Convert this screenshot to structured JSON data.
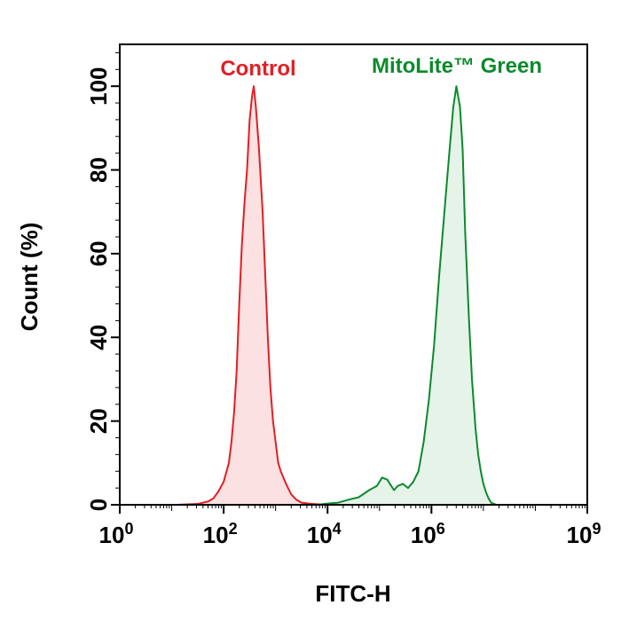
{
  "chart_data": {
    "type": "area",
    "title": "",
    "xlabel": "FITC-H",
    "ylabel": "Count  (%)",
    "x_scale": "log10",
    "xlim": [
      1,
      1000000000
    ],
    "ylim": [
      0,
      110
    ],
    "x_ticks": [
      {
        "value": 1,
        "base": "10",
        "exp": "0"
      },
      {
        "value": 100,
        "base": "10",
        "exp": "2"
      },
      {
        "value": 10000,
        "base": "10",
        "exp": "4"
      },
      {
        "value": 1000000,
        "base": "10",
        "exp": "6"
      },
      {
        "value": 1000000000,
        "base": "10",
        "exp": "9"
      }
    ],
    "y_ticks": [
      0,
      20,
      40,
      60,
      80,
      100
    ],
    "grid": false,
    "legend_placement": "top",
    "series": [
      {
        "name": "Control",
        "color": "#e31e24",
        "fill": "#fbe1e1",
        "points": [
          [
            1.1,
            0
          ],
          [
            1.5,
            0.2
          ],
          [
            1.7,
            0.8
          ],
          [
            1.8,
            1.5
          ],
          [
            1.9,
            3.2
          ],
          [
            2.0,
            5.5
          ],
          [
            2.1,
            10
          ],
          [
            2.15,
            15
          ],
          [
            2.2,
            22
          ],
          [
            2.25,
            32
          ],
          [
            2.3,
            48
          ],
          [
            2.35,
            62
          ],
          [
            2.4,
            72
          ],
          [
            2.45,
            80
          ],
          [
            2.5,
            92
          ],
          [
            2.55,
            98
          ],
          [
            2.58,
            100
          ],
          [
            2.62,
            95
          ],
          [
            2.68,
            85
          ],
          [
            2.75,
            70
          ],
          [
            2.8,
            55
          ],
          [
            2.85,
            40
          ],
          [
            2.9,
            28
          ],
          [
            2.95,
            20
          ],
          [
            3.0,
            15
          ],
          [
            3.05,
            10
          ],
          [
            3.1,
            8
          ],
          [
            3.2,
            5
          ],
          [
            3.3,
            2.5
          ],
          [
            3.4,
            1.2
          ],
          [
            3.5,
            0.5
          ],
          [
            3.7,
            0.2
          ],
          [
            4.0,
            0
          ]
        ]
      },
      {
        "name": "MitoLite™ Green",
        "color": "#0b8a2c",
        "fill": "#e6f3e9",
        "points": [
          [
            3.8,
            0
          ],
          [
            4.0,
            0.3
          ],
          [
            4.2,
            0.5
          ],
          [
            4.4,
            1.2
          ],
          [
            4.6,
            1.8
          ],
          [
            4.8,
            3.5
          ],
          [
            4.95,
            4.5
          ],
          [
            5.05,
            6.5
          ],
          [
            5.15,
            6
          ],
          [
            5.2,
            5
          ],
          [
            5.28,
            3.5
          ],
          [
            5.35,
            4.5
          ],
          [
            5.45,
            5
          ],
          [
            5.55,
            4
          ],
          [
            5.65,
            5.5
          ],
          [
            5.75,
            8
          ],
          [
            5.85,
            15
          ],
          [
            5.95,
            25
          ],
          [
            6.05,
            38
          ],
          [
            6.15,
            55
          ],
          [
            6.25,
            70
          ],
          [
            6.35,
            85
          ],
          [
            6.42,
            95
          ],
          [
            6.48,
            100
          ],
          [
            6.55,
            95
          ],
          [
            6.6,
            85
          ],
          [
            6.65,
            65
          ],
          [
            6.72,
            45
          ],
          [
            6.78,
            30
          ],
          [
            6.85,
            18
          ],
          [
            6.9,
            12
          ],
          [
            6.95,
            8
          ],
          [
            7.0,
            5
          ],
          [
            7.05,
            3
          ],
          [
            7.1,
            1.5
          ],
          [
            7.15,
            0.5
          ],
          [
            7.25,
            0
          ]
        ]
      }
    ]
  }
}
